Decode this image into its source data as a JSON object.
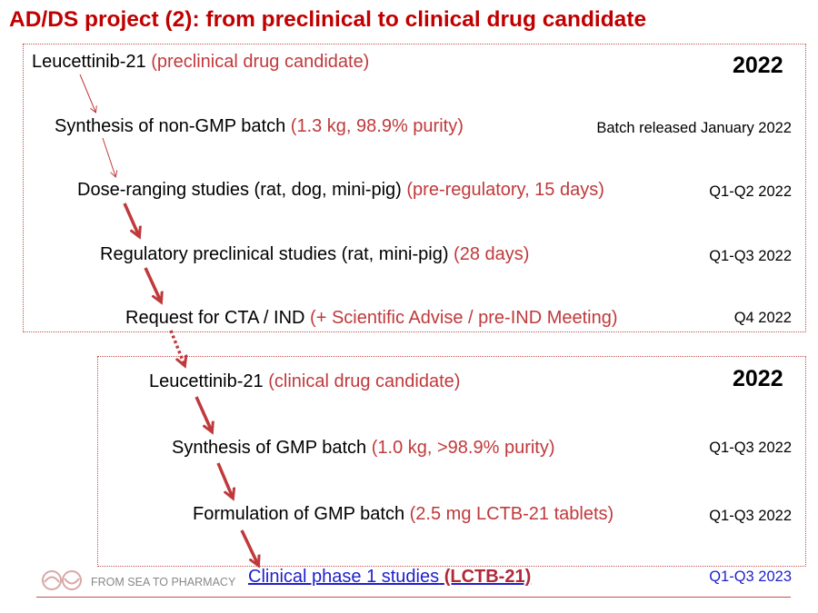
{
  "title": "AD/DS project (2): from preclinical to clinical drug candidate",
  "section1": {
    "year": "2022",
    "steps": [
      {
        "text": "Leucettinib-21",
        "detail": "(preclinical drug candidate)",
        "date": ""
      },
      {
        "text": "Synthesis of non-GMP batch",
        "detail": "(1.3 kg, 98.9% purity)",
        "date": "Batch released January 2022"
      },
      {
        "text": "Dose-ranging studies (rat, dog, mini-pig)",
        "detail": "(pre-regulatory, 15 days)",
        "date": "Q1-Q2 2022"
      },
      {
        "text": "Regulatory preclinical studies (rat, mini-pig)",
        "detail": "(28 days)",
        "date": "Q1-Q3 2022"
      },
      {
        "text": "Request for CTA / IND",
        "detail": "(+ Scientific Advise / pre-IND Meeting)",
        "date": "Q4 2022"
      }
    ]
  },
  "section2": {
    "year": "2022",
    "steps": [
      {
        "text": "Leucettinib-21",
        "detail": "(clinical drug candidate)",
        "date": ""
      },
      {
        "text": "Synthesis of GMP batch",
        "detail": "(1.0 kg, >98.9% purity)",
        "date": "Q1-Q3 2022"
      },
      {
        "text": "Formulation of GMP batch",
        "detail": "(2.5 mg LCTB-21 tablets)",
        "date": "Q1-Q3 2022"
      }
    ],
    "final": {
      "text": "Clinical phase 1 studies",
      "detail": "(LCTB-21)",
      "date": "Q1-Q3 2023"
    }
  },
  "footer": {
    "text": "FROM SEA TO PHARMACY"
  },
  "colors": {
    "title": "#c00000",
    "accent": "#c0393b",
    "link": "#1f1fcc"
  }
}
